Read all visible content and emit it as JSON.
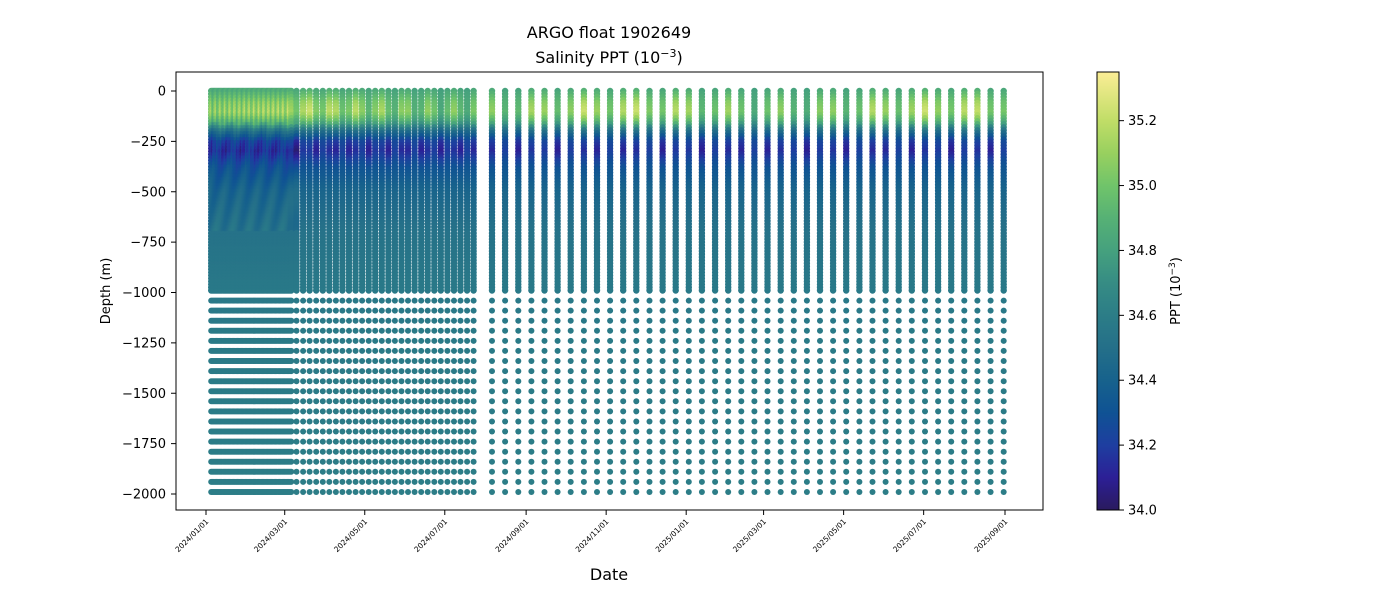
{
  "chart_data": {
    "type": "scatter",
    "title": "ARGO float 1902649",
    "subtitle": "Salinity PPT (10",
    "subtitle_exp": "−3",
    "subtitle_end": ")",
    "xlabel": "Date",
    "ylabel": "Depth (m)",
    "ylim": [
      -2070,
      95
    ],
    "xlim": [
      "2023-12-06",
      "2025-09-30"
    ],
    "x_ticks": [
      "2024/01/01",
      "2024/03/01",
      "2024/05/01",
      "2024/07/01",
      "2024/09/01",
      "2024/11/01",
      "2025/01/01",
      "2025/03/01",
      "2025/05/01",
      "2025/07/01",
      "2025/09/01"
    ],
    "y_ticks": [
      0,
      -250,
      -500,
      -750,
      -1000,
      -1250,
      -1500,
      -1750,
      -2000
    ],
    "y_tick_labels": [
      "0",
      "−250",
      "−500",
      "−750",
      "−1000",
      "−1250",
      "−1500",
      "−1750",
      "−2000"
    ],
    "profile_groups": [
      {
        "start": "2024-01-05",
        "end": "2024-03-06",
        "interval_days": 1
      },
      {
        "start": "2024-03-10",
        "end": "2024-07-27",
        "interval_days": 5
      },
      {
        "start": "2024-08-06",
        "end": "2025-09-01",
        "interval_days": 10
      }
    ],
    "upper_depth_range_m": [
      0,
      -1000
    ],
    "lower_depth_levels_m": {
      "start": -1040,
      "end": -1990,
      "step": -50
    },
    "mean_profile": [
      [
        0,
        34.85
      ],
      [
        60,
        35.0
      ],
      [
        110,
        35.05
      ],
      [
        160,
        34.85
      ],
      [
        200,
        34.5
      ],
      [
        250,
        34.22
      ],
      [
        300,
        34.15
      ],
      [
        380,
        34.3
      ],
      [
        500,
        34.42
      ],
      [
        700,
        34.52
      ],
      [
        1000,
        34.57
      ],
      [
        2000,
        34.6
      ]
    ],
    "colorbar": {
      "label": "PPT (10",
      "label_exp": "−3",
      "label_end": ")",
      "range": [
        34.0,
        35.35
      ],
      "ticks": [
        34.0,
        34.2,
        34.4,
        34.6,
        34.8,
        35.0,
        35.2
      ],
      "tick_labels": [
        "34.0",
        "34.2",
        "34.4",
        "34.6",
        "34.8",
        "35.0",
        "35.2"
      ],
      "colormap": [
        [
          34.0,
          "#2a1a5e"
        ],
        [
          34.1,
          "#2c1f96"
        ],
        [
          34.2,
          "#1e3ea0"
        ],
        [
          34.3,
          "#0f5294"
        ],
        [
          34.4,
          "#17628c"
        ],
        [
          34.5,
          "#246f89"
        ],
        [
          34.6,
          "#2c7d87"
        ],
        [
          34.7,
          "#368c84"
        ],
        [
          34.8,
          "#45a17e"
        ],
        [
          34.9,
          "#56b175"
        ],
        [
          35.0,
          "#70c46a"
        ],
        [
          35.1,
          "#98d05f"
        ],
        [
          35.2,
          "#c0dd67"
        ],
        [
          35.35,
          "#fbed95"
        ]
      ]
    }
  }
}
